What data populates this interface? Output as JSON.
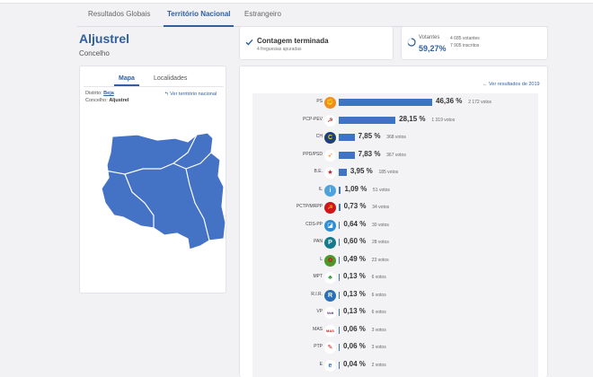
{
  "tabs": [
    {
      "label": "Resultados Globais"
    },
    {
      "label": "Território Nacional"
    },
    {
      "label": "Estrangeiro"
    }
  ],
  "place": {
    "name": "Aljustrel",
    "type": "Concelho"
  },
  "count": {
    "title": "Contagem terminada",
    "subtitle": "4 freguesias apuradas"
  },
  "voters": {
    "label": "Votantes",
    "percent": "59,27%",
    "votes": "4 685 votantes",
    "registered": "7 905 inscritos"
  },
  "map_panel": {
    "tabs": [
      {
        "label": "Mapa"
      },
      {
        "label": "Localidades"
      }
    ],
    "district_label": "Distrito:",
    "district_value": "Beja",
    "council_label": "Concelho:",
    "council_value": "Aljustrel",
    "national_link": "Ver território nacional",
    "map_color": "#4472c4"
  },
  "results": {
    "previous_link": "Ver resultados de 2019",
    "bar_color": "#3f73c3",
    "parties": [
      {
        "name": "PS",
        "pct": 46.36,
        "pct_label": "46,36 %",
        "votes": "2 172 votos",
        "logo_bg": "#f28c1e",
        "logo_text": "✊",
        "logo_color": "#c0141c"
      },
      {
        "name": "PCP-PEV",
        "pct": 28.15,
        "pct_label": "28,15 %",
        "votes": "1 319 votos",
        "logo_bg": "#ffffff",
        "logo_text": "☭",
        "logo_color": "#d00000"
      },
      {
        "name": "CH",
        "pct": 7.85,
        "pct_label": "7,85 %",
        "votes": "368 votos",
        "logo_bg": "#1d3f7a",
        "logo_text": "C",
        "logo_color": "#ffd200"
      },
      {
        "name": "PPD/PSD",
        "pct": 7.83,
        "pct_label": "7,83 %",
        "votes": "367 votos",
        "logo_bg": "#ffffff",
        "logo_text": "➶",
        "logo_color": "#f07d00"
      },
      {
        "name": "B.E.",
        "pct": 3.95,
        "pct_label": "3,95 %",
        "votes": "185 votos",
        "logo_bg": "#ffffff",
        "logo_text": "★",
        "logo_color": "#d0141c"
      },
      {
        "name": "IL",
        "pct": 1.09,
        "pct_label": "1,09 %",
        "votes": "51 votos",
        "logo_bg": "#4fa3dc",
        "logo_text": "i",
        "logo_color": "#ffffff"
      },
      {
        "name": "PCTP/MRPP",
        "pct": 0.73,
        "pct_label": "0,73 %",
        "votes": "34 votos",
        "logo_bg": "#d0141c",
        "logo_text": "☭",
        "logo_color": "#ffd200"
      },
      {
        "name": "CDS-PP",
        "pct": 0.64,
        "pct_label": "0,64 %",
        "votes": "30 votos",
        "logo_bg": "#2a8fd8",
        "logo_text": "◪",
        "logo_color": "#ffffff"
      },
      {
        "name": "PAN",
        "pct": 0.6,
        "pct_label": "0,60 %",
        "votes": "28 votos",
        "logo_bg": "#147a8c",
        "logo_text": "P",
        "logo_color": "#ffffff"
      },
      {
        "name": "L",
        "pct": 0.49,
        "pct_label": "0,49 %",
        "votes": "23 votos",
        "logo_bg": "#4a9a2a",
        "logo_text": "✿",
        "logo_color": "#d0141c"
      },
      {
        "name": "MPT",
        "pct": 0.13,
        "pct_label": "0,13 %",
        "votes": "6 votos",
        "logo_bg": "#ffffff",
        "logo_text": "♣",
        "logo_color": "#2e9a3a"
      },
      {
        "name": "R.I.R.",
        "pct": 0.13,
        "pct_label": "0,13 %",
        "votes": "6 votos",
        "logo_bg": "#2a6fb8",
        "logo_text": "R",
        "logo_color": "#ffffff"
      },
      {
        "name": "VP",
        "pct": 0.13,
        "pct_label": "0,13 %",
        "votes": "6 votos",
        "logo_bg": "#ffffff",
        "logo_text": "Volt",
        "logo_color": "#502379"
      },
      {
        "name": "MAS",
        "pct": 0.06,
        "pct_label": "0,06 %",
        "votes": "3 votos",
        "logo_bg": "#ffffff",
        "logo_text": "MAS",
        "logo_color": "#d0141c"
      },
      {
        "name": "PTP",
        "pct": 0.06,
        "pct_label": "0,06 %",
        "votes": "3 votos",
        "logo_bg": "#ffffff",
        "logo_text": "✎",
        "logo_color": "#d0141c"
      },
      {
        "name": "E",
        "pct": 0.04,
        "pct_label": "0,04 %",
        "votes": "2 votos",
        "logo_bg": "#ffffff",
        "logo_text": "e",
        "logo_color": "#2a6fb8"
      }
    ]
  }
}
